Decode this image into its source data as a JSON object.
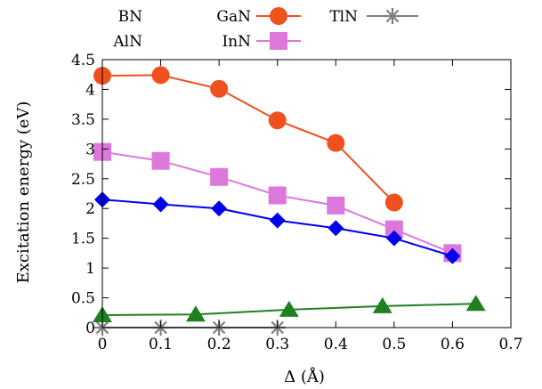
{
  "chart_data": {
    "type": "line",
    "xlabel": "Δ (Å)",
    "ylabel": "Excitation energy (eV)",
    "xlim": [
      0,
      0.7
    ],
    "ylim": [
      0,
      4.5
    ],
    "xticks": [
      "0",
      "0.1",
      "0.2",
      "0.3",
      "0.4",
      "0.5",
      "0.6",
      "0.7"
    ],
    "yticks": [
      "0",
      "0.5",
      "1",
      "1.5",
      "2",
      "2.5",
      "3",
      "3.5",
      "4",
      "4.5"
    ],
    "legend_placement": "top",
    "grid": false,
    "series": [
      {
        "name": "BN",
        "color": "#000000",
        "marker": "none",
        "x": [],
        "y": []
      },
      {
        "name": "GaN",
        "color": "#f0501e",
        "marker": "circle",
        "x": [
          0,
          0.1,
          0.2,
          0.3,
          0.4,
          0.5
        ],
        "y": [
          4.23,
          4.24,
          4.01,
          3.48,
          3.1,
          2.1
        ]
      },
      {
        "name": "TlN",
        "color": "#7f7f7f",
        "marker": "asterisk",
        "x": [
          0,
          0.1,
          0.2,
          0.3
        ],
        "y": [
          0,
          0,
          0,
          0
        ]
      },
      {
        "name": "AlN",
        "color": "#000000",
        "marker": "none",
        "x": [],
        "y": []
      },
      {
        "name": "InN",
        "color": "#dc78dc",
        "marker": "square",
        "x": [
          0,
          0.1,
          0.2,
          0.3,
          0.4,
          0.5,
          0.6
        ],
        "y": [
          2.95,
          2.8,
          2.53,
          2.22,
          2.05,
          1.65,
          1.25
        ]
      },
      {
        "name": "",
        "color": "#0000ee",
        "marker": "diamond",
        "x": [
          0,
          0.1,
          0.2,
          0.3,
          0.4,
          0.5,
          0.6
        ],
        "y": [
          2.15,
          2.07,
          2.0,
          1.8,
          1.67,
          1.5,
          1.2
        ]
      },
      {
        "name": "",
        "color": "#208020",
        "marker": "triangle",
        "x": [
          0,
          0.16,
          0.32,
          0.48,
          0.64
        ],
        "y": [
          0.21,
          0.22,
          0.3,
          0.36,
          0.4
        ]
      }
    ]
  }
}
